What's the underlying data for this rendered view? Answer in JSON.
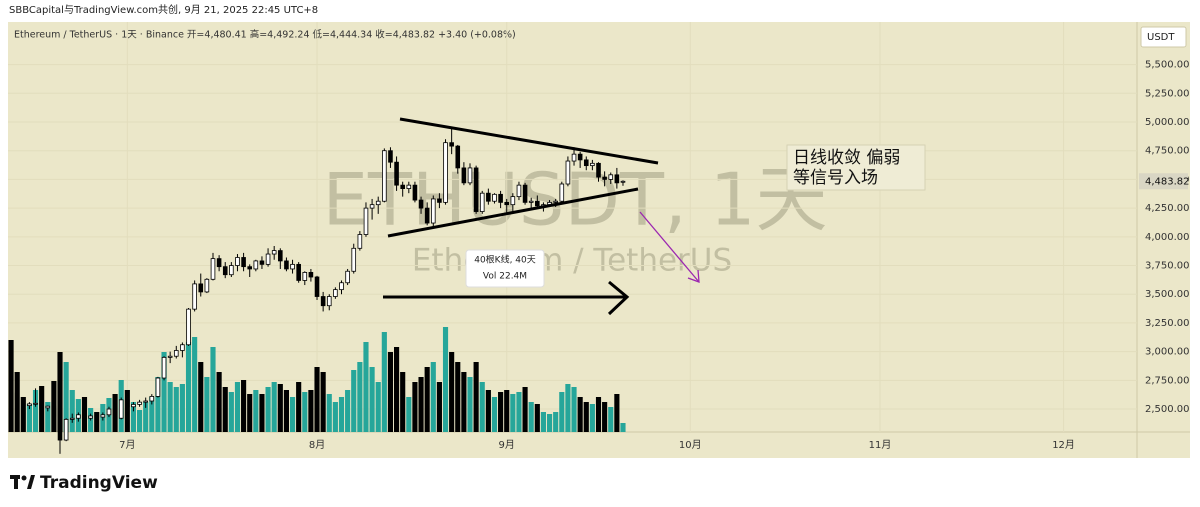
{
  "header": {
    "credit": "SBBCapital与TradingView.com共创, 9月 21, 2025 22:45 UTC+8",
    "legend": "Ethereum / TetherUS · 1天 · Binance  开=4,480.41  高=4,492.24  低=4,444.34  收=4,483.82  +3.40 (+0.08%)"
  },
  "chart_data": {
    "type": "candlestick",
    "currency": "USDT",
    "watermark": {
      "symbol": "ETHUSDT, 1天",
      "name": "Ethereum / TetherUS"
    },
    "measure": {
      "bars": "40根K线, 40天",
      "volume": "Vol 22.4M"
    },
    "annotation": [
      "日线收敛 偏弱",
      "等信号入场"
    ],
    "price_label": "4,483.82",
    "up_color": "#ffffff",
    "down_color": "#000000",
    "outline_color": "#000000",
    "volume_up_color": "#26a69a",
    "volume_down_color": "#000000",
    "xlim": [
      -0.5,
      184
    ],
    "xticks": [
      {
        "value": 19,
        "label": "7月"
      },
      {
        "value": 50,
        "label": "8月"
      },
      {
        "value": 81,
        "label": "9月"
      },
      {
        "value": 111,
        "label": "10月"
      },
      {
        "value": 142,
        "label": "11月"
      },
      {
        "value": 172,
        "label": "12月"
      }
    ],
    "ylim": [
      2300,
      5871
    ],
    "yticks": [
      {
        "value": 2500,
        "label": "2,500.00"
      },
      {
        "value": 2750,
        "label": "2,750.00"
      },
      {
        "value": 3000,
        "label": "3,000.00"
      },
      {
        "value": 3250,
        "label": "3,250.00"
      },
      {
        "value": 3500,
        "label": "3,500.00"
      },
      {
        "value": 3750,
        "label": "3,750.00"
      },
      {
        "value": 4000,
        "label": "4,000.00"
      },
      {
        "value": 4250,
        "label": "4,250.00"
      },
      {
        "value": 4500,
        "label": "4,500.00"
      },
      {
        "value": 4750,
        "label": "4,750.00"
      },
      {
        "value": 5000,
        "label": "5,000.00"
      },
      {
        "value": 5250,
        "label": "5,250.00"
      },
      {
        "value": 5500,
        "label": "5,500.00"
      }
    ],
    "volume_lim": [
      0,
      1100000
    ],
    "open": [
      2770,
      2640,
      2580,
      2530,
      2545,
      2550,
      2510,
      2525,
      2440,
      2230,
      2410,
      2420,
      2450,
      2420,
      2440,
      2430,
      2450,
      2500,
      2420,
      2580,
      2520,
      2540,
      2560,
      2570,
      2610,
      2770,
      2950,
      2960,
      3010,
      3060,
      3370,
      3590,
      3520,
      3630,
      3810,
      3740,
      3670,
      3750,
      3820,
      3740,
      3720,
      3790,
      3760,
      3850,
      3880,
      3790,
      3720,
      3760,
      3620,
      3690,
      3650,
      3480,
      3400,
      3480,
      3540,
      3600,
      3700,
      3900,
      4020,
      4250,
      4280,
      4310,
      4750,
      4650,
      4450,
      4420,
      4450,
      4320,
      4250,
      4120,
      4330,
      4300,
      4820,
      4790,
      4600,
      4470,
      4600,
      4220,
      4380,
      4310,
      4370,
      4300,
      4280,
      4350,
      4450,
      4300,
      4310,
      4270,
      4280,
      4300,
      4310,
      4460,
      4660,
      4720,
      4670,
      4620,
      4640,
      4520,
      4500,
      4540,
      4480.41
    ],
    "high": [
      2800,
      2660,
      2600,
      2560,
      2680,
      2560,
      2530,
      2545,
      2450,
      2420,
      2460,
      2470,
      2490,
      2460,
      2450,
      2470,
      2520,
      2520,
      2600,
      2610,
      2560,
      2580,
      2600,
      2630,
      2780,
      2960,
      3000,
      3050,
      3080,
      3380,
      3620,
      3680,
      3640,
      3860,
      3840,
      3780,
      3780,
      3850,
      3860,
      3760,
      3800,
      3830,
      3900,
      3920,
      3900,
      3820,
      3800,
      3780,
      3700,
      3720,
      3660,
      3520,
      3500,
      3560,
      3620,
      3720,
      3940,
      4050,
      4300,
      4330,
      4350,
      4770,
      4780,
      4700,
      4480,
      4480,
      4480,
      4350,
      4300,
      4360,
      4380,
      4850,
      4960,
      4800,
      4650,
      4640,
      4620,
      4400,
      4420,
      4380,
      4400,
      4330,
      4380,
      4480,
      4470,
      4340,
      4360,
      4300,
      4320,
      4330,
      4480,
      4700,
      4780,
      4740,
      4700,
      4670,
      4650,
      4570,
      4560,
      4600,
      4492.24
    ],
    "low": [
      2620,
      2480,
      2510,
      2500,
      2520,
      2490,
      2480,
      2400,
      2110,
      2220,
      2380,
      2390,
      2400,
      2400,
      2410,
      2400,
      2430,
      2400,
      2410,
      2500,
      2480,
      2520,
      2510,
      2540,
      2600,
      2750,
      2900,
      2940,
      2950,
      3050,
      3350,
      3480,
      3510,
      3620,
      3700,
      3640,
      3650,
      3700,
      3700,
      3650,
      3700,
      3720,
      3740,
      3800,
      3720,
      3700,
      3680,
      3600,
      3580,
      3610,
      3450,
      3350,
      3360,
      3460,
      3500,
      3580,
      3680,
      3880,
      4000,
      4150,
      4200,
      4300,
      4600,
      4400,
      4350,
      4380,
      4300,
      4200,
      4100,
      4080,
      4250,
      4280,
      4720,
      4550,
      4450,
      4450,
      4200,
      4200,
      4280,
      4290,
      4250,
      4200,
      4220,
      4320,
      4280,
      4250,
      4250,
      4220,
      4260,
      4260,
      4300,
      4440,
      4620,
      4600,
      4580,
      4580,
      4480,
      4440,
      4460,
      4420,
      4444.34
    ],
    "close": [
      2640,
      2580,
      2530,
      2545,
      2550,
      2510,
      2525,
      2440,
      2230,
      2410,
      2420,
      2450,
      2420,
      2440,
      2430,
      2450,
      2500,
      2420,
      2580,
      2520,
      2540,
      2560,
      2570,
      2610,
      2770,
      2950,
      2960,
      3010,
      3060,
      3370,
      3590,
      3520,
      3630,
      3810,
      3740,
      3670,
      3750,
      3820,
      3740,
      3720,
      3790,
      3760,
      3850,
      3880,
      3790,
      3720,
      3760,
      3620,
      3690,
      3650,
      3480,
      3400,
      3480,
      3540,
      3600,
      3700,
      3900,
      4020,
      4250,
      4280,
      4310,
      4750,
      4650,
      4450,
      4420,
      4450,
      4320,
      4250,
      4120,
      4330,
      4300,
      4820,
      4790,
      4600,
      4470,
      4600,
      4220,
      4380,
      4310,
      4370,
      4300,
      4280,
      4350,
      4450,
      4300,
      4310,
      4270,
      4280,
      4300,
      4310,
      4460,
      4660,
      4720,
      4670,
      4620,
      4640,
      4520,
      4500,
      4540,
      4470,
      4483.82
    ],
    "volume": [
      920000,
      600000,
      350000,
      280000,
      420000,
      460000,
      300000,
      510000,
      800000,
      700000,
      420000,
      330000,
      350000,
      240000,
      200000,
      280000,
      340000,
      380000,
      520000,
      420000,
      300000,
      220000,
      300000,
      350000,
      550000,
      800000,
      500000,
      450000,
      480000,
      900000,
      950000,
      700000,
      550000,
      850000,
      600000,
      450000,
      400000,
      500000,
      520000,
      380000,
      420000,
      380000,
      450000,
      500000,
      480000,
      420000,
      350000,
      500000,
      400000,
      420000,
      650000,
      600000,
      380000,
      300000,
      350000,
      420000,
      620000,
      700000,
      900000,
      650000,
      500000,
      1000000,
      800000,
      850000,
      600000,
      350000,
      500000,
      550000,
      650000,
      700000,
      500000,
      1050000,
      800000,
      700000,
      600000,
      550000,
      700000,
      500000,
      420000,
      350000,
      400000,
      420000,
      380000,
      400000,
      450000,
      300000,
      280000,
      200000,
      180000,
      200000,
      400000,
      480000,
      450000,
      350000,
      300000,
      280000,
      350000,
      300000,
      250000,
      380000,
      90000
    ]
  },
  "footer": {
    "brand": "TradingView"
  }
}
